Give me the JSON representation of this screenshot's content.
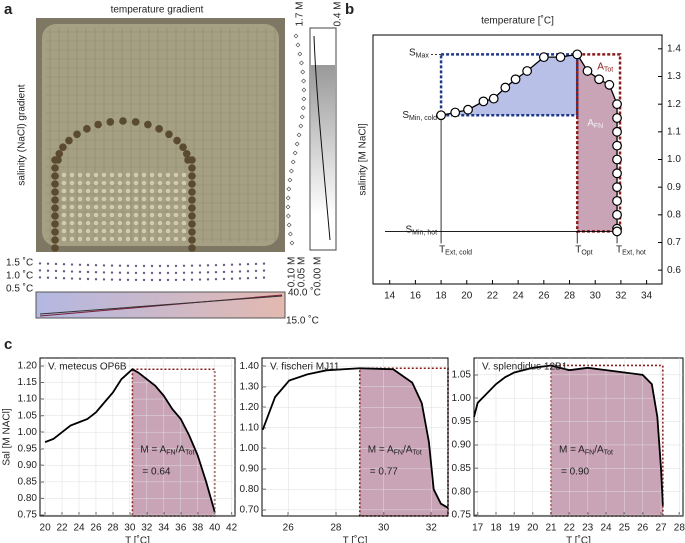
{
  "panel_labels": [
    "a",
    "b",
    "c"
  ],
  "photo_panel": {
    "title": "temperature gradient",
    "ylabel": "salinity (NaCl) gradient",
    "salinity_labels": [
      "1.7 M",
      "0.4 M"
    ],
    "scale_labels": [
      "0.10 M",
      "0.05 M",
      "0.00 M"
    ],
    "temp_diff_labels": [
      "1.5 ˚C",
      "1.0 ˚C",
      "0.5 ˚C"
    ],
    "temp_labels": [
      "40.0 ˚C",
      "15.0 ˚C"
    ]
  },
  "chart_data": [
    {
      "type": "line",
      "xlabel": "temperature [˚C]",
      "ylabel": "salinity [M NaCl]",
      "x": [
        18,
        19.1,
        20.1,
        21.3,
        22.1,
        23,
        23.8,
        24.7,
        26,
        27.3,
        28.6,
        29.4,
        30.3,
        31.1,
        31.7,
        31.7,
        31.7,
        31.7,
        31.7,
        31.7,
        31.7,
        31.7,
        31.7,
        31.7,
        31.7
      ],
      "values": [
        1.16,
        1.17,
        1.18,
        1.21,
        1.22,
        1.26,
        1.29,
        1.32,
        1.37,
        1.37,
        1.38,
        1.32,
        1.29,
        1.27,
        1.2,
        1.15,
        1.1,
        1.05,
        1,
        0.95,
        0.9,
        0.85,
        0.8,
        0.75,
        0.74
      ],
      "color": "#000000",
      "fill_colors": [
        "#b9c0e8",
        "#c9a3b6"
      ],
      "box_colors": [
        "#223a8a",
        "#8b1e1e"
      ],
      "xlim": [
        12.7,
        35.2
      ],
      "ylim": [
        0.55,
        1.45
      ],
      "xticks": [
        14,
        16,
        18,
        20,
        22,
        24,
        26,
        28,
        30,
        32,
        34
      ],
      "yticks": [
        0.6,
        0.7,
        0.8,
        0.9,
        {
          "value": 1,
          "label": "1.0"
        },
        1.1,
        1.2,
        1.3,
        1.4
      ],
      "annotations": {
        "s_max": [
          "S",
          "Max"
        ],
        "s_min_cold": [
          "S",
          "Min, cold"
        ],
        "s_min_hot": [
          "S",
          "Min, hot"
        ],
        "a_tot": [
          "A",
          "Tot"
        ],
        "a_fn": [
          "A",
          "FN"
        ],
        "t_ext_cold": [
          "T",
          "Ext, cold"
        ],
        "t_opt": [
          "T",
          "Opt"
        ],
        "t_ext_hot": [
          "T",
          "Ext, hot"
        ]
      }
    },
    {
      "type": "line",
      "title": "V. metecus OP6B",
      "xlabel": "T [˚C]",
      "ylabel": "Sal [M NACl]",
      "x": [
        20,
        21,
        22,
        23,
        24,
        25,
        26,
        27,
        28,
        29,
        30.3,
        31,
        32,
        33,
        34,
        35,
        36,
        37,
        38,
        39,
        40
      ],
      "values": [
        0.97,
        0.98,
        1,
        1.02,
        1.03,
        1.04,
        1.06,
        1.09,
        1.12,
        1.16,
        1.19,
        1.18,
        1.16,
        1.14,
        1.11,
        1.07,
        1.04,
        0.99,
        0.93,
        0.85,
        0.76
      ],
      "color": "#000000",
      "fill_color": "#c9a3b6",
      "box_color": "#8b1e1e",
      "xlim": [
        19.4,
        42.4
      ],
      "ylim": [
        0.747,
        1.224
      ],
      "xticks": [
        20,
        22,
        24,
        26,
        28,
        30,
        32,
        34,
        36,
        38,
        40,
        42
      ],
      "yticks": [
        0.75,
        {
          "value": 0.8,
          "label": "0.80"
        },
        0.85,
        {
          "value": 0.9,
          "label": "0.90"
        },
        0.95,
        {
          "value": 1,
          "label": "1.00"
        },
        1.05,
        {
          "value": 1.1,
          "label": "1.10"
        },
        1.15,
        {
          "value": 1.2,
          "label": "1.20"
        }
      ],
      "formula": [
        "M = A",
        "FN",
        "/A",
        "Tot"
      ],
      "m_value": "= 0.64"
    },
    {
      "type": "line",
      "title": "V. fischeri MJ11",
      "xlabel": "T [˚C]",
      "x": [
        24.93,
        25.45,
        26.04,
        26.8,
        27.6,
        29,
        30.4,
        31.2,
        31.6,
        31.9,
        32.1,
        32.4,
        32.7
      ],
      "values": [
        1.09,
        1.25,
        1.33,
        1.36,
        1.38,
        1.39,
        1.385,
        1.32,
        1.22,
        1.03,
        0.8,
        0.73,
        0.71
      ],
      "color": "#000000",
      "fill_color": "#c9a3b6",
      "box_color": "#8b1e1e",
      "xlim": [
        24.9,
        32.7
      ],
      "ylim": [
        0.67,
        1.44
      ],
      "xticks": [
        26,
        28,
        30,
        32
      ],
      "yticks": [
        {
          "value": 0.7,
          "label": "0.70"
        },
        {
          "value": 0.8,
          "label": "0.80"
        },
        {
          "value": 0.9,
          "label": "0.90"
        },
        {
          "value": 1,
          "label": "1.00"
        },
        {
          "value": 1.1,
          "label": "1.10"
        },
        {
          "value": 1.2,
          "label": "1.20"
        },
        {
          "value": 1.3,
          "label": "1.30"
        },
        {
          "value": 1.4,
          "label": "1.40"
        }
      ],
      "formula": [
        "M = A",
        "FN",
        "/A",
        "Tot"
      ],
      "m_value": "= 0.77"
    },
    {
      "type": "line",
      "title": "V. splendidus 12B1",
      "xlabel": "T [˚C]",
      "x": [
        16.8,
        17,
        17.5,
        18,
        18.5,
        19,
        19.5,
        20,
        21,
        21.5,
        22,
        23,
        24,
        25,
        26,
        26.5,
        26.8,
        27,
        27.1
      ],
      "values": [
        0.96,
        0.99,
        1.01,
        1.03,
        1.045,
        1.055,
        1.06,
        1.065,
        1.07,
        1.065,
        1.06,
        1.065,
        1.06,
        1.055,
        1.05,
        1.03,
        0.96,
        0.85,
        0.77
      ],
      "color": "#000000",
      "fill_color": "#c9a3b6",
      "box_color": "#8b1e1e",
      "xlim": [
        16.8,
        28.2
      ],
      "ylim": [
        0.748,
        1.086
      ],
      "xticks": [
        17,
        18,
        19,
        20,
        21,
        22,
        23,
        24,
        25,
        26,
        27,
        28
      ],
      "yticks": [
        0.75,
        {
          "value": 0.8,
          "label": "0.80"
        },
        0.85,
        {
          "value": 0.9,
          "label": "0.90"
        },
        0.95,
        {
          "value": 1,
          "label": "1.00"
        },
        1.05
      ],
      "formula": [
        "M = A",
        "FN",
        "/A",
        "Tot"
      ],
      "m_value": "= 0.90"
    }
  ]
}
